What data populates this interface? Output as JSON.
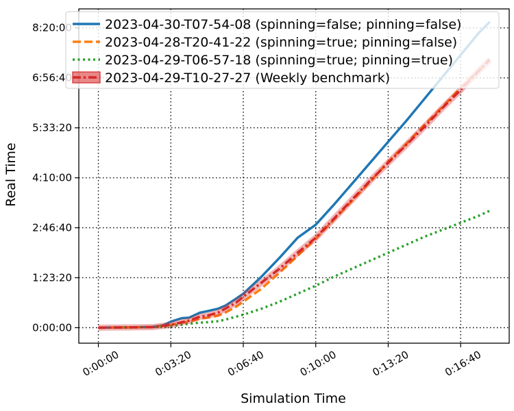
{
  "chart_data": {
    "type": "line",
    "xlabel": "Simulation Time",
    "ylabel": "Real Time",
    "x_ticks": [
      {
        "value": 0,
        "label": "0:00:00"
      },
      {
        "value": 200,
        "label": "0:03:20"
      },
      {
        "value": 400,
        "label": "0:06:40"
      },
      {
        "value": 600,
        "label": "0:10:00"
      },
      {
        "value": 800,
        "label": "0:13:20"
      },
      {
        "value": 1000,
        "label": "0:16:40"
      }
    ],
    "y_ticks": [
      {
        "value": 0,
        "label": "0:00:00"
      },
      {
        "value": 5000,
        "label": "1:23:20"
      },
      {
        "value": 10000,
        "label": "2:46:40"
      },
      {
        "value": 15000,
        "label": "4:10:00"
      },
      {
        "value": 20000,
        "label": "5:33:20"
      },
      {
        "value": 25000,
        "label": "6:56:40"
      },
      {
        "value": 30000,
        "label": "8:20:00"
      }
    ],
    "xlim": [
      -54,
      1134
    ],
    "ylim": [
      -1550,
      31900
    ],
    "grid": true,
    "legend_position": "top",
    "series": [
      {
        "name": "2023-04-30-T07-54-08 (spinning=false; pinning=false)",
        "color": "#1f77b4",
        "dash": "solid",
        "x": [
          0,
          100,
          150,
          180,
          200,
          230,
          250,
          280,
          300,
          330,
          350,
          380,
          400,
          450,
          500,
          550,
          600,
          650,
          700,
          750,
          800,
          850,
          900,
          950,
          1000,
          1050,
          1080
        ],
        "y": [
          0,
          50,
          80,
          250,
          600,
          950,
          1000,
          1500,
          1650,
          1900,
          2200,
          2900,
          3400,
          5100,
          7000,
          9000,
          10300,
          12300,
          14400,
          16500,
          18600,
          20700,
          22900,
          25100,
          27300,
          29500,
          30600
        ]
      },
      {
        "name": "2023-04-28-T20-41-22 (spinning=true; pinning=false)",
        "color": "#ff7f0e",
        "dash": "dashed",
        "x": [
          0,
          100,
          150,
          200,
          230,
          250,
          280,
          300,
          330,
          350,
          380,
          400,
          450,
          500,
          550,
          600,
          650,
          700,
          750,
          800,
          850,
          900,
          950,
          1000,
          1050,
          1080
        ],
        "y": [
          0,
          30,
          60,
          280,
          500,
          600,
          900,
          1000,
          1200,
          1500,
          2100,
          2600,
          3900,
          5500,
          7200,
          8900,
          10800,
          12700,
          14600,
          16600,
          18400,
          20300,
          22100,
          24000,
          25700,
          26900
        ]
      },
      {
        "name": "2023-04-29-T06-57-18 (spinning=true; pinning=true)",
        "color": "#2ca02c",
        "dash": "dotted",
        "x": [
          0,
          100,
          150,
          200,
          230,
          250,
          280,
          300,
          330,
          350,
          380,
          400,
          450,
          500,
          550,
          600,
          650,
          700,
          750,
          800,
          850,
          900,
          950,
          1000,
          1050,
          1080
        ],
        "y": [
          0,
          30,
          60,
          150,
          300,
          400,
          500,
          550,
          650,
          800,
          1100,
          1300,
          1900,
          2600,
          3400,
          4200,
          5100,
          5900,
          6700,
          7500,
          8300,
          9100,
          9800,
          10500,
          11200,
          11700
        ]
      },
      {
        "name": "2023-04-29-T10-27-27 (Weekly benchmark)",
        "color": "#d62728",
        "dash": "dashdot",
        "x": [
          0,
          100,
          150,
          200,
          230,
          250,
          280,
          300,
          330,
          350,
          380,
          400,
          450,
          500,
          550,
          600,
          650,
          700,
          750,
          800,
          850,
          900,
          950,
          1000,
          1050,
          1080
        ],
        "y": [
          0,
          30,
          60,
          280,
          550,
          700,
          1100,
          1200,
          1500,
          1900,
          2500,
          3100,
          4500,
          5900,
          7500,
          9000,
          10900,
          12800,
          14700,
          16500,
          18300,
          20100,
          22000,
          23800,
          25700,
          26800
        ],
        "band": true
      }
    ]
  }
}
